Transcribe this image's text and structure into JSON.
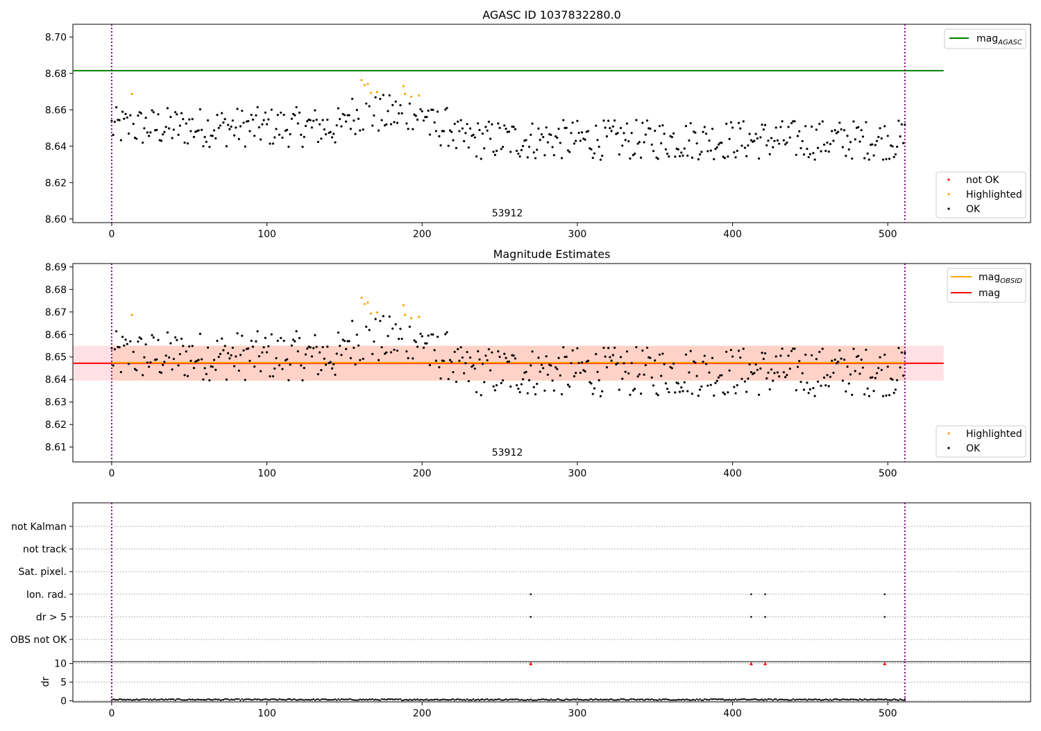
{
  "chart_data": [
    {
      "type": "scatter",
      "title": "AGASC ID 1037832280.0",
      "xlim": [
        -25,
        592
      ],
      "ylim": [
        8.598,
        8.707
      ],
      "xticks": [
        0,
        100,
        200,
        300,
        400,
        500
      ],
      "yticks": [
        8.6,
        8.62,
        8.64,
        8.66,
        8.68,
        8.7
      ],
      "ytick_labels": [
        "8.60",
        "8.62",
        "8.64",
        "8.66",
        "8.68",
        "8.70"
      ],
      "obsid_label": "53912",
      "obsid_label_x": 255,
      "obs_boundaries": [
        0,
        511
      ],
      "mag_agasc": 8.6815,
      "mag_agasc_range": [
        -25,
        536
      ],
      "line_legend": [
        {
          "name": "mag",
          "subscript": "AGASC",
          "color": "#008000"
        }
      ],
      "marker_legend": [
        {
          "name": "not OK",
          "color": "#ff0000"
        },
        {
          "name": "Highlighted",
          "color": "#ffa500"
        },
        {
          "name": "OK",
          "color": "#000000"
        }
      ],
      "highlighted_points": [
        [
          13,
          8.6687
        ],
        [
          161,
          8.6763
        ],
        [
          163,
          8.6735
        ],
        [
          165,
          8.6742
        ],
        [
          167,
          8.6693
        ],
        [
          171,
          8.6698
        ],
        [
          188,
          8.673
        ],
        [
          189,
          8.6687
        ],
        [
          193,
          8.6672
        ],
        [
          198,
          8.6678
        ]
      ]
    },
    {
      "type": "scatter",
      "title": "Magnitude Estimates",
      "xlim": [
        -25,
        592
      ],
      "ylim": [
        8.6034,
        8.6915
      ],
      "xticks": [
        0,
        100,
        200,
        300,
        400,
        500
      ],
      "yticks": [
        8.61,
        8.62,
        8.63,
        8.64,
        8.65,
        8.66,
        8.67,
        8.68,
        8.69
      ],
      "ytick_labels": [
        "8.61",
        "8.62",
        "8.63",
        "8.64",
        "8.65",
        "8.66",
        "8.67",
        "8.68",
        "8.69"
      ],
      "obsid_label": "53912",
      "obsid_label_x": 255,
      "obs_boundaries": [
        0,
        511
      ],
      "mag_obsid": 8.6475,
      "mag": 8.6472,
      "mag_band": [
        8.6395,
        8.655
      ],
      "mag_range": [
        -25,
        536
      ],
      "line_legend": [
        {
          "name": "mag",
          "subscript": "OBSID",
          "color": "#ffa500"
        },
        {
          "name": "mag",
          "subscript": "",
          "color": "#ff0000"
        }
      ],
      "marker_legend": [
        {
          "name": "Highlighted",
          "color": "#ffa500"
        },
        {
          "name": "OK",
          "color": "#000000"
        }
      ]
    },
    {
      "type": "scatter",
      "xlim": [
        -25,
        592
      ],
      "flag_rows": [
        "not Kalman",
        "not track",
        "Sat. pixel.",
        "Ion. rad.",
        "dr > 5",
        "OBS not OK"
      ],
      "flag_points": [
        {
          "flag": "Ion. rad.",
          "x": [
            270,
            412,
            421,
            498
          ]
        },
        {
          "flag": "dr > 5",
          "x": [
            270,
            412,
            421,
            498
          ]
        }
      ],
      "obs_boundaries": [
        0,
        511
      ]
    },
    {
      "type": "scatter",
      "xlabel": "",
      "ylabel": "dr",
      "xlim": [
        -25,
        592
      ],
      "ylim": [
        -0.3,
        10.5
      ],
      "xticks": [
        0,
        100,
        200,
        300,
        400,
        500
      ],
      "yticks": [
        0,
        5,
        10
      ],
      "dr_capped_points": [
        [
          270,
          10
        ],
        [
          412,
          10
        ],
        [
          421,
          10
        ],
        [
          498,
          10
        ]
      ],
      "dr_typical": 0.3,
      "obs_boundaries": [
        0,
        511
      ]
    }
  ],
  "n_points": 512,
  "mag_center": 8.6475
}
